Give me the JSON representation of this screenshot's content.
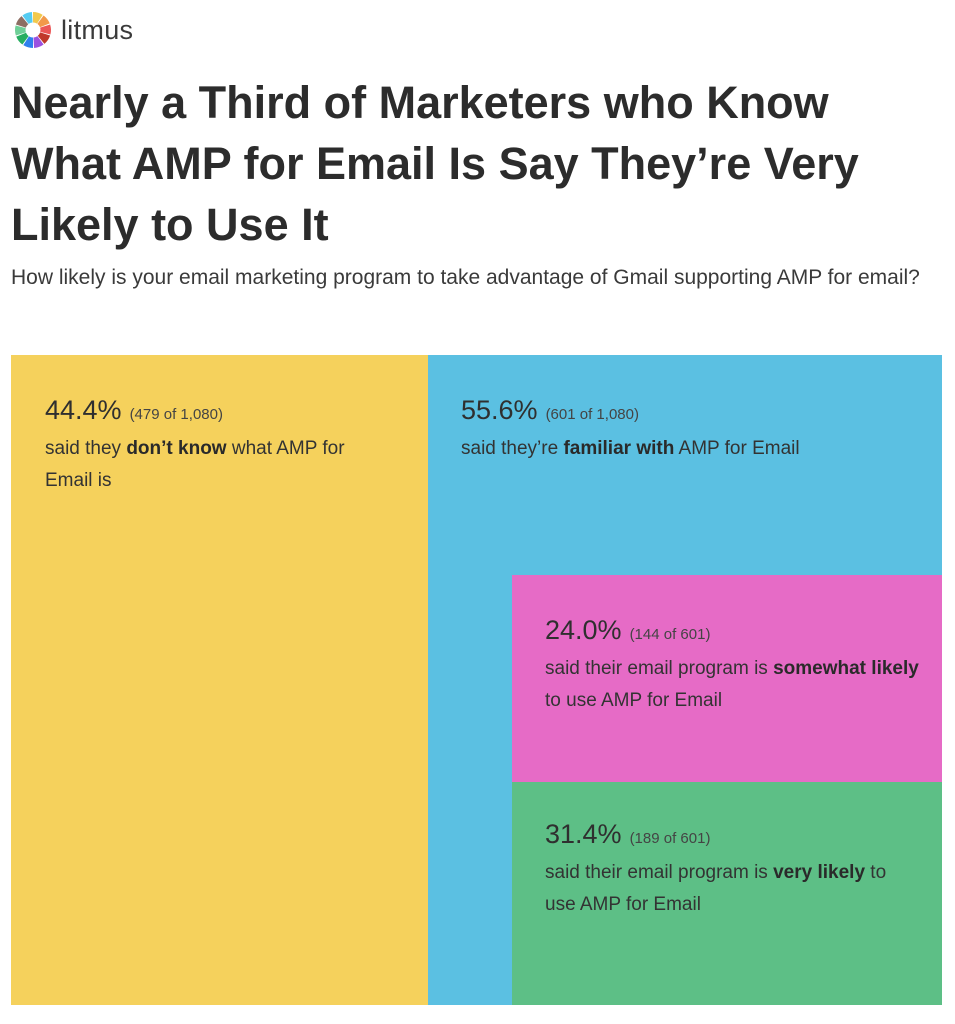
{
  "brand": {
    "name": "litmus",
    "logo_colors": [
      "#f2c94c",
      "#f2994a",
      "#eb5757",
      "#c0392b",
      "#9b51e0",
      "#2f80ed",
      "#27ae60",
      "#6fcf97",
      "#8d6e63",
      "#56ccf2"
    ]
  },
  "header": {
    "title": "Nearly a Third of Marketers who Know What AMP for Email Is Say They’re Very Likely to Use It",
    "subtitle": "How likely is your email marketing program to take advantage of Gmail supporting AMP for email?"
  },
  "chart_data": {
    "type": "treemap",
    "title": "Nearly a Third of Marketers who Know What AMP for Email Is Say They’re Very Likely to Use It",
    "subtitle": "How likely is your email marketing program to take advantage of Gmail supporting AMP for email?",
    "total": 1080,
    "nodes": [
      {
        "id": "dont_know",
        "percent": 44.4,
        "pct_label": "44.4%",
        "count": 479,
        "of": 1080,
        "count_label": "(479 of 1,080)",
        "desc_pre": "said they ",
        "desc_bold": "don’t know",
        "desc_post": " what AMP for Email is",
        "color": "#f5d15c"
      },
      {
        "id": "familiar",
        "percent": 55.6,
        "pct_label": "55.6%",
        "count": 601,
        "of": 1080,
        "count_label": "(601 of 1,080)",
        "desc_pre": "said they’re ",
        "desc_bold": "familiar with",
        "desc_post": " AMP for Email",
        "color": "#5bc0e2",
        "children": [
          {
            "id": "somewhat_likely",
            "percent": 24.0,
            "pct_label": "24.0%",
            "count": 144,
            "of": 601,
            "count_label": "(144 of 601)",
            "desc_pre": "said their email program is ",
            "desc_bold": "somewhat likely",
            "desc_post": " to use AMP for Email",
            "color": "#e66bc6"
          },
          {
            "id": "very_likely",
            "percent": 31.4,
            "pct_label": "31.4%",
            "count": 189,
            "of": 601,
            "count_label": "(189 of 601)",
            "desc_pre": "said their email program is ",
            "desc_bold": "very likely",
            "desc_post": " to use AMP for Email",
            "color": "#5dbf86"
          }
        ]
      }
    ]
  }
}
